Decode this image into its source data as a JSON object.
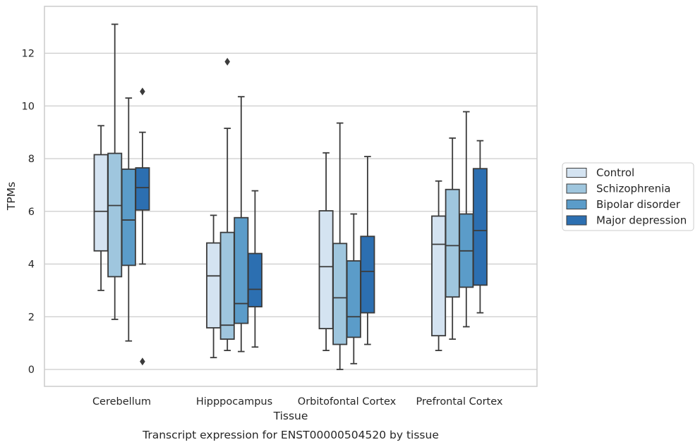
{
  "chart_data": {
    "type": "box",
    "title": "",
    "caption": "Transcript expression for ENST00000504520 by tissue",
    "xlabel": "Tissue",
    "ylabel": "TPMs",
    "ylim": [
      -0.65,
      13.85
    ],
    "yticks": [
      0,
      2,
      4,
      6,
      8,
      10,
      12
    ],
    "grid": "horizontal",
    "legend_position": "outside-right",
    "categories": [
      "Cerebellum",
      "Hipppocampus",
      "Orbitofontal Cortex",
      "Prefrontal Cortex"
    ],
    "series": [
      {
        "name": "Control",
        "color": "#d4e3f1",
        "boxes": [
          {
            "whislo": 3.0,
            "q1": 4.5,
            "med": 6.0,
            "q3": 8.15,
            "whishi": 9.25,
            "fliers": []
          },
          {
            "whislo": 0.45,
            "q1": 1.58,
            "med": 3.55,
            "q3": 4.8,
            "whishi": 5.85,
            "fliers": []
          },
          {
            "whislo": 0.72,
            "q1": 1.55,
            "med": 3.9,
            "q3": 6.02,
            "whishi": 8.22,
            "fliers": []
          },
          {
            "whislo": 0.72,
            "q1": 1.28,
            "med": 4.75,
            "q3": 5.82,
            "whishi": 7.15,
            "fliers": []
          }
        ]
      },
      {
        "name": "Schizophrenia",
        "color": "#9fc6de",
        "boxes": [
          {
            "whislo": 1.9,
            "q1": 3.52,
            "med": 6.22,
            "q3": 8.2,
            "whishi": 13.1,
            "fliers": []
          },
          {
            "whislo": 0.72,
            "q1": 1.15,
            "med": 1.68,
            "q3": 5.2,
            "whishi": 9.15,
            "fliers": [
              11.68
            ]
          },
          {
            "whislo": 0.0,
            "q1": 0.95,
            "med": 2.72,
            "q3": 4.78,
            "whishi": 9.35,
            "fliers": []
          },
          {
            "whislo": 1.15,
            "q1": 2.75,
            "med": 4.7,
            "q3": 6.83,
            "whishi": 8.78,
            "fliers": []
          }
        ]
      },
      {
        "name": "Bipolar disorder",
        "color": "#5b9cc9",
        "boxes": [
          {
            "whislo": 1.08,
            "q1": 3.95,
            "med": 5.67,
            "q3": 7.6,
            "whishi": 10.3,
            "fliers": []
          },
          {
            "whislo": 0.68,
            "q1": 1.75,
            "med": 2.5,
            "q3": 5.76,
            "whishi": 10.35,
            "fliers": []
          },
          {
            "whislo": 0.22,
            "q1": 1.22,
            "med": 2.0,
            "q3": 4.12,
            "whishi": 5.9,
            "fliers": []
          },
          {
            "whislo": 1.62,
            "q1": 3.12,
            "med": 4.5,
            "q3": 5.9,
            "whishi": 9.78,
            "fliers": []
          }
        ]
      },
      {
        "name": "Major depression",
        "color": "#2c6fb1",
        "boxes": [
          {
            "whislo": 4.0,
            "q1": 6.05,
            "med": 6.9,
            "q3": 7.65,
            "whishi": 9.0,
            "fliers": [
              10.55,
              0.3
            ]
          },
          {
            "whislo": 0.85,
            "q1": 2.38,
            "med": 3.04,
            "q3": 4.4,
            "whishi": 6.78,
            "fliers": []
          },
          {
            "whislo": 0.95,
            "q1": 2.15,
            "med": 3.72,
            "q3": 5.05,
            "whishi": 8.08,
            "fliers": []
          },
          {
            "whislo": 2.15,
            "q1": 3.2,
            "med": 5.27,
            "q3": 7.62,
            "whishi": 8.68,
            "fliers": []
          }
        ]
      }
    ]
  }
}
